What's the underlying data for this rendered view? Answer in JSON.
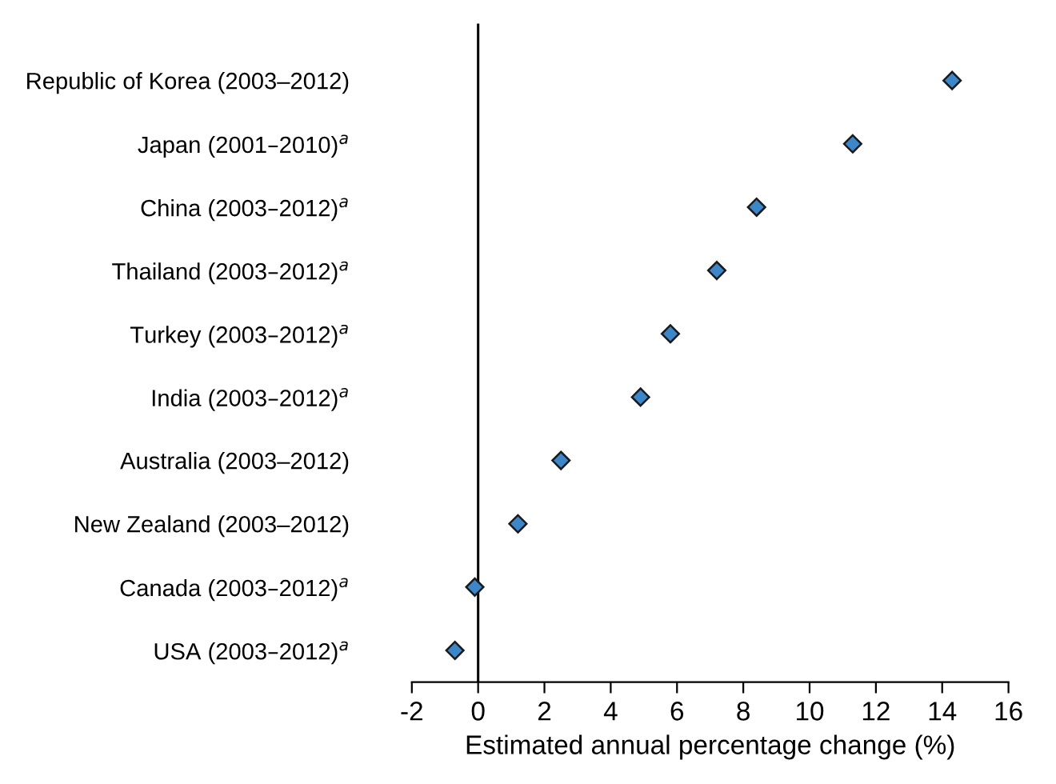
{
  "chart_data": {
    "type": "scatter",
    "orientation": "horizontal",
    "categories": [
      "Republic of Korea (2003–2012)",
      "Japan (2001–2010)$^{a}$",
      "China (2003–2012)$^{a}$",
      "Thailand (2003–2012)$^{a}$",
      "Turkey (2003–2012)$^{a}$",
      "India (2003–2012)$^{a}$",
      "Australia (2003–2012)",
      "New Zealand (2003–2012)",
      "Canada (2003–2012)$^{a}$",
      "USA (2003–2012)$^{a}$"
    ],
    "values": [
      14.3,
      11.3,
      8.4,
      7.2,
      5.8,
      4.9,
      2.5,
      1.2,
      -0.1,
      -0.7
    ],
    "color": "#3b87c9",
    "marker": "diamond",
    "xlabel": "Estimated annual percentage change (%)",
    "xlim": [
      -2,
      16
    ],
    "xticks": [
      -2,
      0,
      2,
      4,
      6,
      8,
      10,
      12,
      14,
      16
    ],
    "ref_lines": [
      {
        "axis": "x",
        "value": 0,
        "color": "#000000"
      }
    ],
    "grid": false
  }
}
